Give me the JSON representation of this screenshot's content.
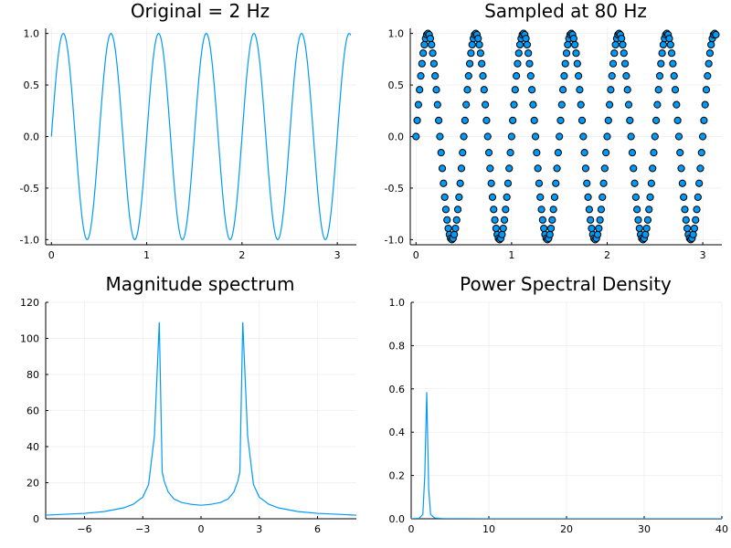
{
  "colors": {
    "series": "#009af9",
    "marker_stroke": "#000000"
  },
  "chart_data": [
    {
      "id": "original",
      "type": "line",
      "title": "Original = 2 Hz",
      "function": "sin(2*pi*2*t)",
      "xlim": [
        -0.06,
        3.2
      ],
      "ylim": [
        -1.05,
        1.05
      ],
      "xticks": [
        0,
        1,
        2,
        3
      ],
      "xtick_labels": [
        "0",
        "1",
        "2",
        "3"
      ],
      "yticks": [
        -1,
        -0.5,
        0,
        0.5,
        1
      ],
      "ytick_labels": [
        "-1.0",
        "-0.5",
        "0.0",
        "0.5",
        "1.0"
      ],
      "x_range": [
        0,
        3.14
      ],
      "grid": true,
      "legend": "none"
    },
    {
      "id": "sampled",
      "type": "scatter",
      "title": "Sampled at 80 Hz",
      "function": "sin(2*pi*2*t)",
      "sample_rate_hz": 80,
      "xlim": [
        -0.06,
        3.2
      ],
      "ylim": [
        -1.05,
        1.05
      ],
      "xticks": [
        0,
        1,
        2,
        3
      ],
      "xtick_labels": [
        "0",
        "1",
        "2",
        "3"
      ],
      "yticks": [
        -1,
        -0.5,
        0,
        0.5,
        1
      ],
      "ytick_labels": [
        "-1.0",
        "-0.5",
        "0.0",
        "0.5",
        "1.0"
      ],
      "x_range": [
        0,
        3.14
      ],
      "grid": true,
      "legend": "none"
    },
    {
      "id": "magnitude",
      "type": "line",
      "title": "Magnitude spectrum",
      "x": [
        -8,
        -7,
        -6,
        -5,
        -4.5,
        -4,
        -3.5,
        -3,
        -2.7,
        -2.4,
        -2.15,
        -2,
        -1.9,
        -1.7,
        -1.4,
        -1,
        -0.5,
        0,
        0.5,
        1,
        1.4,
        1.7,
        1.9,
        2,
        2.15,
        2.4,
        2.7,
        3,
        3.5,
        4,
        4.5,
        5,
        6,
        7,
        8
      ],
      "y": [
        2,
        2.5,
        3,
        4,
        5,
        6,
        8,
        12,
        19,
        46,
        109,
        26,
        21,
        15,
        11,
        9,
        8,
        7.5,
        8,
        9,
        11,
        15,
        21,
        26,
        109,
        46,
        19,
        12,
        8,
        6,
        5,
        4,
        3,
        2.5,
        2
      ],
      "xlim": [
        -8,
        8
      ],
      "ylim": [
        0,
        120
      ],
      "xticks": [
        -6,
        -3,
        0,
        3,
        6
      ],
      "xtick_labels": [
        "−6",
        "−3",
        "0",
        "3",
        "6"
      ],
      "yticks": [
        0,
        20,
        40,
        60,
        80,
        100,
        120
      ],
      "ytick_labels": [
        "0",
        "20",
        "40",
        "60",
        "80",
        "100",
        "120"
      ],
      "grid": true,
      "legend": "none"
    },
    {
      "id": "psd",
      "type": "line",
      "title": "Power Spectral Density",
      "x": [
        0,
        1,
        1.5,
        1.75,
        2,
        2.25,
        2.5,
        3,
        4,
        10,
        20,
        30,
        40
      ],
      "y": [
        0,
        0.002,
        0.02,
        0.2,
        0.585,
        0.14,
        0.02,
        0.004,
        0.001,
        0,
        0,
        0,
        0
      ],
      "xlim": [
        0,
        40
      ],
      "ylim": [
        0,
        1
      ],
      "xticks": [
        0,
        10,
        20,
        30,
        40
      ],
      "xtick_labels": [
        "0",
        "10",
        "20",
        "30",
        "40"
      ],
      "yticks": [
        0,
        0.2,
        0.4,
        0.6,
        0.8,
        1
      ],
      "ytick_labels": [
        "0.0",
        "0.2",
        "0.4",
        "0.6",
        "0.8",
        "1.0"
      ],
      "grid": true,
      "legend": "none"
    }
  ]
}
